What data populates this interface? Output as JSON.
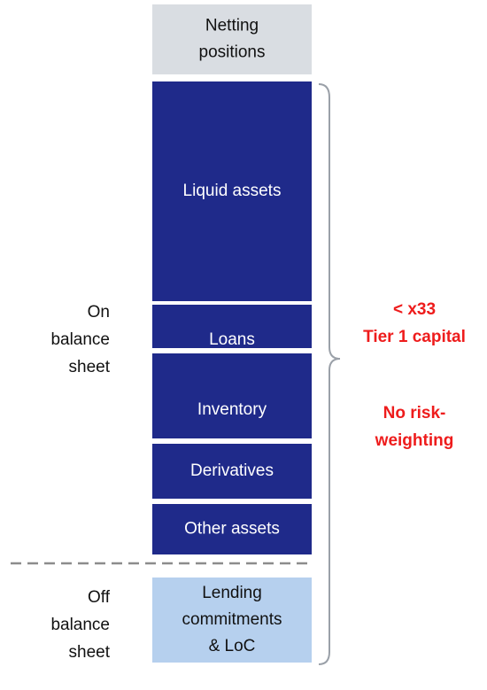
{
  "blocks": [
    {
      "label": "Netting positions",
      "lines": [
        "Netting",
        "positions"
      ]
    },
    {
      "label": "Liquid assets"
    },
    {
      "label": "Loans"
    },
    {
      "label": "Inventory"
    },
    {
      "label": "Derivatives"
    },
    {
      "label": "Other assets"
    },
    {
      "lines": [
        "Lending",
        "commitments",
        "& LoC"
      ]
    }
  ],
  "left_labels": {
    "on": [
      "On",
      "balance",
      "sheet"
    ],
    "off": [
      "Off",
      "balance",
      "sheet"
    ]
  },
  "annotations": {
    "leverage": [
      "< x33",
      "Tier 1 capital"
    ],
    "risk": [
      "No risk-",
      "weighting"
    ]
  }
}
